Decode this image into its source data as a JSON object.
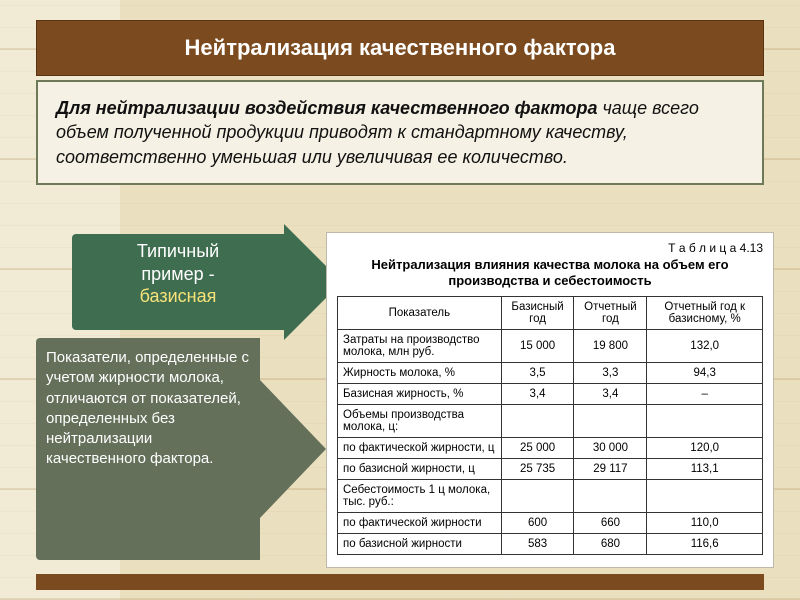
{
  "colors": {
    "slide_bg": "#e8dcc0",
    "title_bg": "#7b4a1e",
    "title_text": "#ffffff",
    "desc_bg": "#f5f1e4",
    "desc_border": "#6e7a57",
    "arrow1_bg": "#3f6d4f",
    "arrow1_highlight": "#f7e27a",
    "arrow2_bg": "#64705a",
    "arrow_text": "#ffffff",
    "table_bg": "#ffffff",
    "table_border": "#333333"
  },
  "title": "Нейтрализация качественного фактора",
  "description": {
    "bold": "Для нейтрализации воздействия качественного фактора",
    "rest": " чаще всего объем полученной продукции приводят к стандартному качеству, соответственно уменьшая или увеличивая ее количество."
  },
  "arrow1": {
    "line1": "Типичный",
    "line2": "пример -",
    "highlight": "базисная"
  },
  "arrow2": {
    "text": "Показатели, определенные с учетом жирности молока, отличаются от показателей, определенных без нейтрализации качественного фактора."
  },
  "table": {
    "label": "Т а б л и ц а  4.13",
    "title": "Нейтрализация влияния качества молока на объем его производства и себестоимость",
    "columns": [
      "Показатель",
      "Базисный год",
      "Отчетный год",
      "Отчетный год к базисному, %"
    ],
    "rows": [
      {
        "label": "Затраты на производство молока, млн руб.",
        "base": "15 000",
        "report": "19 800",
        "pct": "132,0"
      },
      {
        "label": "Жирность молока, %",
        "base": "3,5",
        "report": "3,3",
        "pct": "94,3"
      },
      {
        "label": "Базисная жирность, %",
        "base": "3,4",
        "report": "3,4",
        "pct": "–"
      },
      {
        "label": "Объемы производства молока, ц:",
        "base": "",
        "report": "",
        "pct": ""
      },
      {
        "label": "по фактической жирности, ц",
        "base": "25 000",
        "report": "30 000",
        "pct": "120,0",
        "sub": true
      },
      {
        "label": "по базисной жирности, ц",
        "base": "25 735",
        "report": "29 117",
        "pct": "113,1",
        "sub": true
      },
      {
        "label": "Себестоимость 1 ц молока, тыс. руб.:",
        "base": "",
        "report": "",
        "pct": ""
      },
      {
        "label": "по фактической жирности",
        "base": "600",
        "report": "660",
        "pct": "110,0",
        "sub": true
      },
      {
        "label": "по базисной жирности",
        "base": "583",
        "report": "680",
        "pct": "116,6",
        "sub": true
      }
    ]
  }
}
